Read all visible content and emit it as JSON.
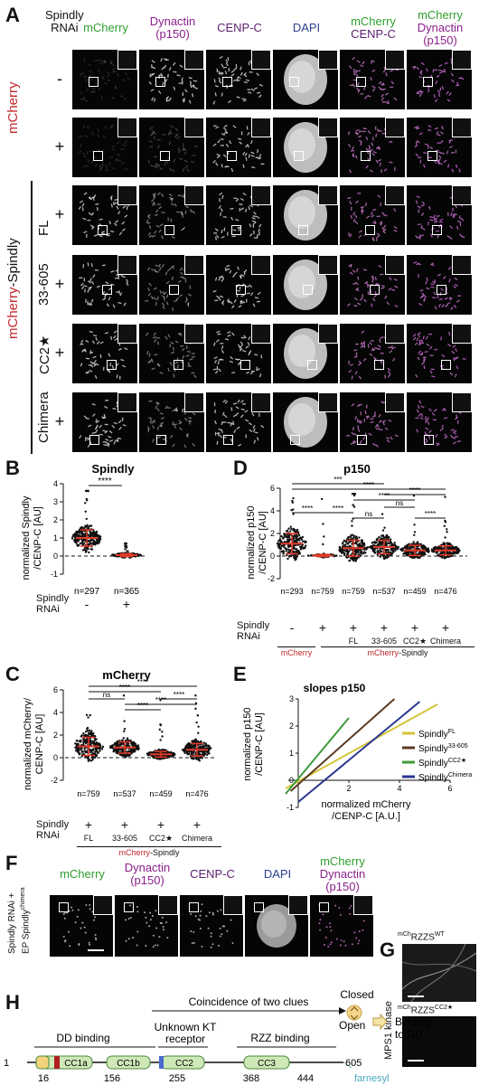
{
  "panelA": {
    "label": "A",
    "rnai_header": [
      "Spindly",
      "RNAi"
    ],
    "columns": [
      {
        "lines": [
          "mCherry"
        ],
        "colors": [
          "#2e9e2e"
        ]
      },
      {
        "lines": [
          "Dynactin",
          "(p150)"
        ],
        "colors": [
          "#8a1f8a",
          "#8a1f8a"
        ]
      },
      {
        "lines": [
          "CENP-C"
        ],
        "colors": [
          "#5a1f6e"
        ]
      },
      {
        "lines": [
          "DAPI"
        ],
        "colors": [
          "#2a3f8f"
        ]
      },
      {
        "lines": [
          "mCherry",
          "CENP-C"
        ],
        "colors": [
          "#2e9e2e",
          "#5a1f6e"
        ]
      },
      {
        "lines": [
          "mCherry",
          "Dynactin",
          "(p150)"
        ],
        "colors": [
          "#2e9e2e",
          "#8a1f8a",
          "#8a1f8a"
        ]
      }
    ],
    "rows": [
      {
        "rnai": "-",
        "label": ""
      },
      {
        "rnai": "+",
        "label": ""
      },
      {
        "rnai": "+",
        "label": "FL"
      },
      {
        "rnai": "+",
        "label": "33-605"
      },
      {
        "rnai": "+",
        "label": "CC2★"
      },
      {
        "rnai": "+",
        "label": "Chimera"
      }
    ],
    "group_mcherry": "mCherry",
    "group_spindly_prefix": "mCherry",
    "group_spindly_suffix": "-Spindly"
  },
  "panelB": {
    "label": "B",
    "title": "Spindly",
    "ylabel": [
      "normalized Spindly",
      "/CENP-C [AU]"
    ],
    "sig": "****",
    "row_label": [
      "Spindly",
      "RNAi"
    ],
    "conditions": [
      "-",
      "+"
    ]
  },
  "panelC": {
    "label": "C",
    "title": "mCherry",
    "ylabel": [
      "normalized mCherry/",
      "CENP-C [AU]"
    ],
    "sigs": [
      "****",
      "****",
      "ns",
      "****",
      "****",
      "****"
    ],
    "row_label": [
      "Spindly",
      "RNAi"
    ],
    "rnai": [
      "+",
      "+",
      "+",
      "+"
    ],
    "constructs": [
      "FL",
      "33-605",
      "CC2★",
      "Chimera"
    ],
    "group_prefix": "mCherry",
    "group_suffix": "-Spindly"
  },
  "panelD": {
    "label": "D",
    "title": "p150",
    "ylabel": [
      "normalized p150",
      "/CENP-C [AU]"
    ],
    "sigs": [
      "***",
      "****",
      "****",
      "****",
      "ns",
      "****",
      "****",
      "****",
      "ns"
    ],
    "row_label": [
      "Spindly",
      "RNAi"
    ],
    "rnai": [
      "-",
      "+",
      "+",
      "+",
      "+",
      "+"
    ],
    "constructs": [
      "FL",
      "33-605",
      "CC2★",
      "Chimera"
    ],
    "group_mcherry": "mCherry",
    "group_prefix": "mCherry",
    "group_suffix": "-Spindly"
  },
  "panelE": {
    "label": "E",
    "title": "slopes p150",
    "ylabel": [
      "normalized p150",
      "/CENP-C [AU]"
    ],
    "xlabel": [
      "normalized mCherry",
      "/CENP-C [A.U.]"
    ],
    "legend": [
      {
        "base": "Spindly",
        "sup": "FL",
        "color": "#d4c43a"
      },
      {
        "base": "Spindly",
        "sup": "33-605",
        "color": "#5a3a22"
      },
      {
        "base": "Spindly",
        "sup": "CC2★",
        "color": "#3f9a3a"
      },
      {
        "base": "Spindly",
        "sup": "Chimera",
        "color": "#2a3590"
      }
    ]
  },
  "panelF": {
    "label": "F",
    "columns": [
      {
        "lines": [
          "mCherry"
        ],
        "colors": [
          "#2e9e2e"
        ]
      },
      {
        "lines": [
          "Dynactin",
          "(p150)"
        ],
        "colors": [
          "#8a1f8a",
          "#8a1f8a"
        ]
      },
      {
        "lines": [
          "CENP-C"
        ],
        "colors": [
          "#5a1f6e"
        ]
      },
      {
        "lines": [
          "DAPI"
        ],
        "colors": [
          "#2a3f8f"
        ]
      },
      {
        "lines": [
          "mCherry",
          "Dynactin",
          "(p150)"
        ],
        "colors": [
          "#2e9e2e",
          "#8a1f8a",
          "#8a1f8a"
        ]
      }
    ],
    "side_line1": "Spindly RNAi +",
    "side_line2": "EP Spindly",
    "side_sup": "chimera"
  },
  "panelG": {
    "label": "G",
    "top_pre": "mCh",
    "top_main": "RZZS",
    "top_sup": "WT",
    "bottom_pre": "mCh",
    "bottom_main": "RZZS",
    "bottom_sup": "CC2★",
    "side": "MPS1 kinase"
  },
  "panelH": {
    "label": "H",
    "coincidence": "Coincidence of two clues",
    "closed": "Closed",
    "open": "Open",
    "binding_dd": [
      "Binding",
      "to DD"
    ],
    "dd_binding": "DD binding",
    "unknown": [
      "Unknown KT",
      "receptor"
    ],
    "rzz_binding": "RZZ binding",
    "domains": [
      "CC1a",
      "CC1b",
      "CC2",
      "CC3"
    ],
    "numbers": [
      "1",
      "16",
      "156",
      "255",
      "368",
      "444",
      "605"
    ],
    "farnesyl": "farnesyl"
  },
  "colors": {
    "red": "#c0282d",
    "green": "#2e9e2e",
    "magenta": "#8a1f8a",
    "purple": "#5a1f6e",
    "blue": "#2a3f8f",
    "domain_fill": "#cfe8b8",
    "domain_stroke": "#4a8a3a",
    "farnesyl": "#4aa8c0"
  }
}
